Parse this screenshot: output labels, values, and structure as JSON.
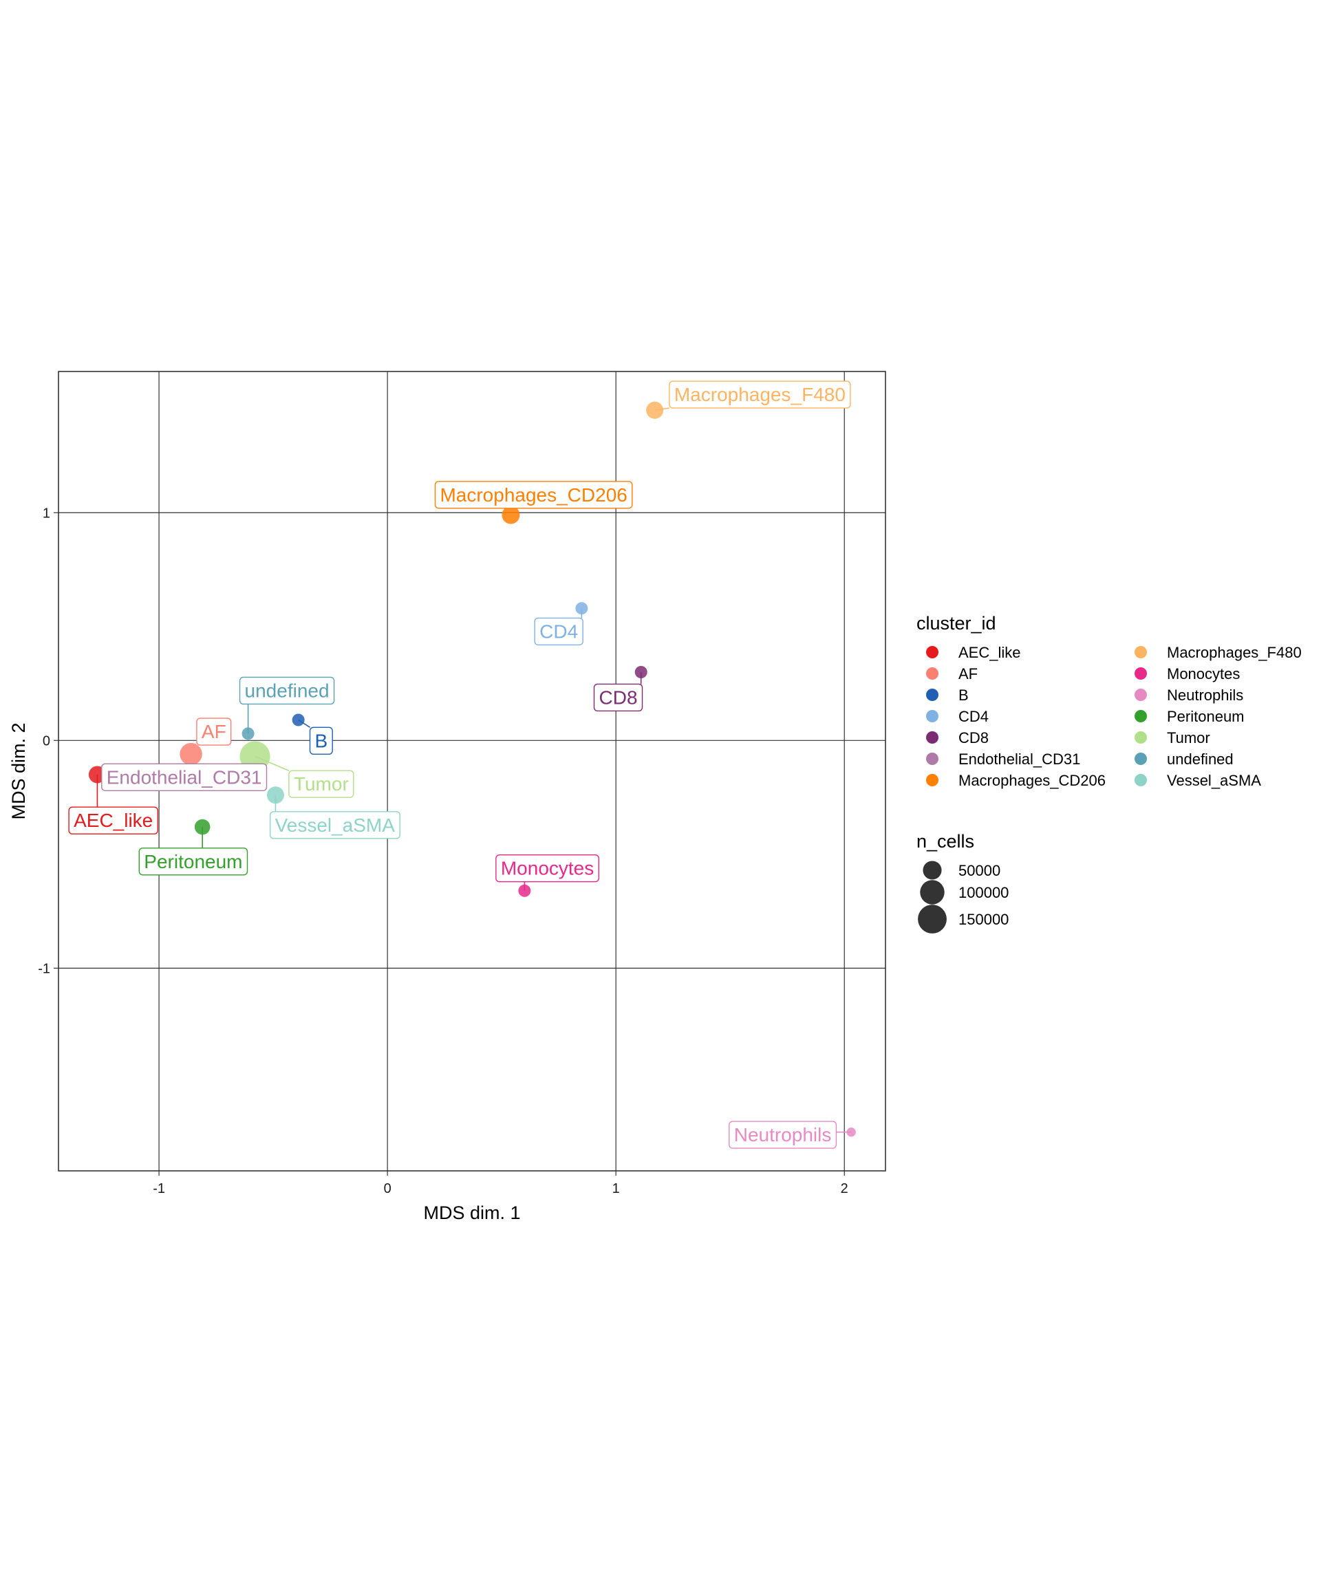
{
  "chart_data": {
    "type": "scatter",
    "xlabel": "MDS dim. 1",
    "ylabel": "MDS dim. 2",
    "xlim": [
      -1.44,
      2.18
    ],
    "ylim": [
      -1.89,
      1.62
    ],
    "xticks": [
      -1,
      0,
      1,
      2
    ],
    "yticks": [
      -1,
      0,
      1
    ],
    "grid": true,
    "legend_position": "right",
    "color_legend": {
      "title": "cluster_id",
      "entries": [
        {
          "name": "AEC_like",
          "color": "#e41a1c"
        },
        {
          "name": "AF",
          "color": "#fb8072"
        },
        {
          "name": "B",
          "color": "#1f5fb4"
        },
        {
          "name": "CD4",
          "color": "#80b1e3"
        },
        {
          "name": "CD8",
          "color": "#7b2d73"
        },
        {
          "name": "Endothelial_CD31",
          "color": "#b07aa8"
        },
        {
          "name": "Macrophages_CD206",
          "color": "#ff7f00"
        },
        {
          "name": "Macrophages_F480",
          "color": "#fdb462"
        },
        {
          "name": "Monocytes",
          "color": "#e7298a"
        },
        {
          "name": "Neutrophils",
          "color": "#e78ac3"
        },
        {
          "name": "Peritoneum",
          "color": "#33a02c"
        },
        {
          "name": "Tumor",
          "color": "#b2df8a"
        },
        {
          "name": "undefined",
          "color": "#5aa1b5"
        },
        {
          "name": "Vessel_aSMA",
          "color": "#8dd3c7"
        }
      ]
    },
    "size_legend": {
      "title": "n_cells",
      "entries": [
        {
          "label": "50000",
          "value": 50000
        },
        {
          "label": "100000",
          "value": 100000
        },
        {
          "label": "150000",
          "value": 150000
        }
      ]
    },
    "points": [
      {
        "label": "AEC_like",
        "x": -1.27,
        "y": -0.15,
        "n_cells": 40000,
        "label_x": -1.2,
        "label_y": -0.35
      },
      {
        "label": "AF",
        "x": -0.86,
        "y": -0.06,
        "n_cells": 80000,
        "label_x": -0.76,
        "label_y": 0.04
      },
      {
        "label": "B",
        "x": -0.39,
        "y": 0.09,
        "n_cells": 15000,
        "label_x": -0.29,
        "label_y": 0.0
      },
      {
        "label": "CD4",
        "x": 0.85,
        "y": 0.58,
        "n_cells": 15000,
        "label_x": 0.75,
        "label_y": 0.48
      },
      {
        "label": "CD8",
        "x": 1.11,
        "y": 0.3,
        "n_cells": 15000,
        "label_x": 1.01,
        "label_y": 0.19
      },
      {
        "label": "Endothelial_CD31",
        "x": -0.68,
        "y": -0.14,
        "n_cells": 30000,
        "label_x": -0.89,
        "label_y": -0.16
      },
      {
        "label": "Macrophages_CD206",
        "x": 0.54,
        "y": 0.99,
        "n_cells": 45000,
        "label_x": 0.64,
        "label_y": 1.08
      },
      {
        "label": "Macrophages_F480",
        "x": 1.17,
        "y": 1.45,
        "n_cells": 40000,
        "label_x": 1.63,
        "label_y": 1.52
      },
      {
        "label": "Monocytes",
        "x": 0.6,
        "y": -0.66,
        "n_cells": 15000,
        "label_x": 0.7,
        "label_y": -0.56
      },
      {
        "label": "Neutrophils",
        "x": 2.03,
        "y": -1.72,
        "n_cells": 5000,
        "label_x": 1.73,
        "label_y": -1.73
      },
      {
        "label": "Peritoneum",
        "x": -0.81,
        "y": -0.38,
        "n_cells": 30000,
        "label_x": -0.85,
        "label_y": -0.53
      },
      {
        "label": "Tumor",
        "x": -0.58,
        "y": -0.07,
        "n_cells": 170000,
        "label_x": -0.29,
        "label_y": -0.19
      },
      {
        "label": "undefined",
        "x": -0.61,
        "y": 0.03,
        "n_cells": 15000,
        "label_x": -0.44,
        "label_y": 0.22
      },
      {
        "label": "Vessel_aSMA",
        "x": -0.49,
        "y": -0.24,
        "n_cells": 40000,
        "label_x": -0.23,
        "label_y": -0.37
      }
    ]
  }
}
